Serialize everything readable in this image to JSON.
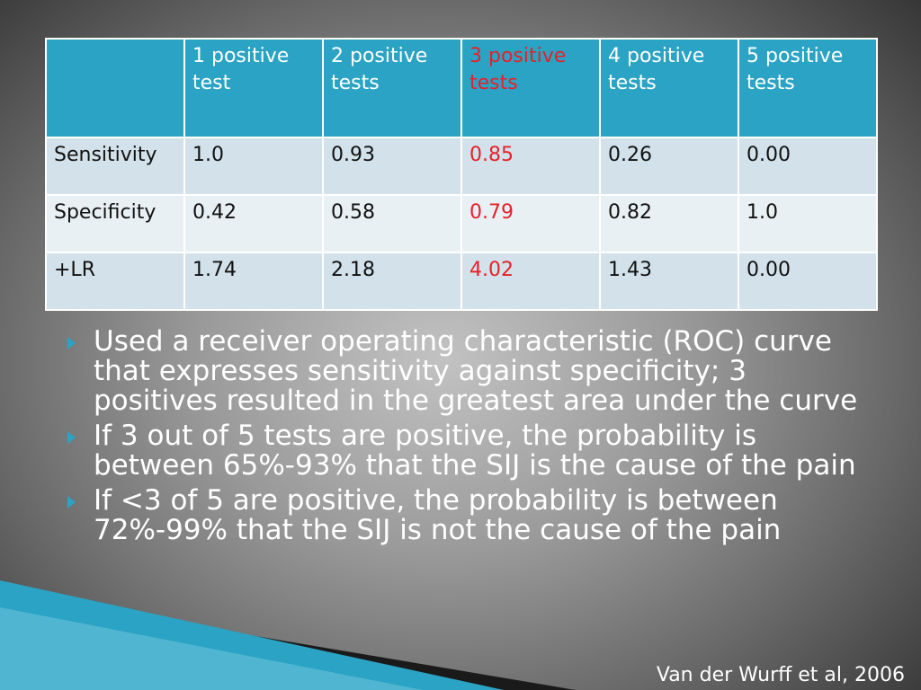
{
  "table": {
    "corner": "",
    "headers": [
      "1 positive test",
      "2 positive tests",
      "3 positive tests",
      "4 positive tests",
      "5 positive tests"
    ],
    "highlight_column": 2,
    "highlight_color": "#e8202a",
    "header_color": "#2aa3c4",
    "rows": [
      {
        "label": "Sensitivity",
        "values": [
          "1.0",
          "0.93",
          "0.85",
          "0.26",
          "0.00"
        ]
      },
      {
        "label": "Specificity",
        "values": [
          "0.42",
          "0.58",
          "0.79",
          "0.82",
          "1.0"
        ]
      },
      {
        "label": "+LR",
        "values": [
          "1.74",
          "2.18",
          "4.02",
          "1.43",
          "0.00"
        ]
      }
    ]
  },
  "bullets": [
    "Used a receiver operating characteristic (ROC) curve that expresses sensitivity against specificity; 3 positives resulted in the greatest area under the curve",
    "If 3 out of 5 tests are positive, the probability is between 65%-93% that the SIJ is the cause of the pain",
    "If <3 of 5 are positive, the probability is between 72%-99% that the SIJ is not the cause of the pain"
  ],
  "bullet_icon": "arrow-right-icon",
  "citation": "Van der Wurff et al, 2006"
}
